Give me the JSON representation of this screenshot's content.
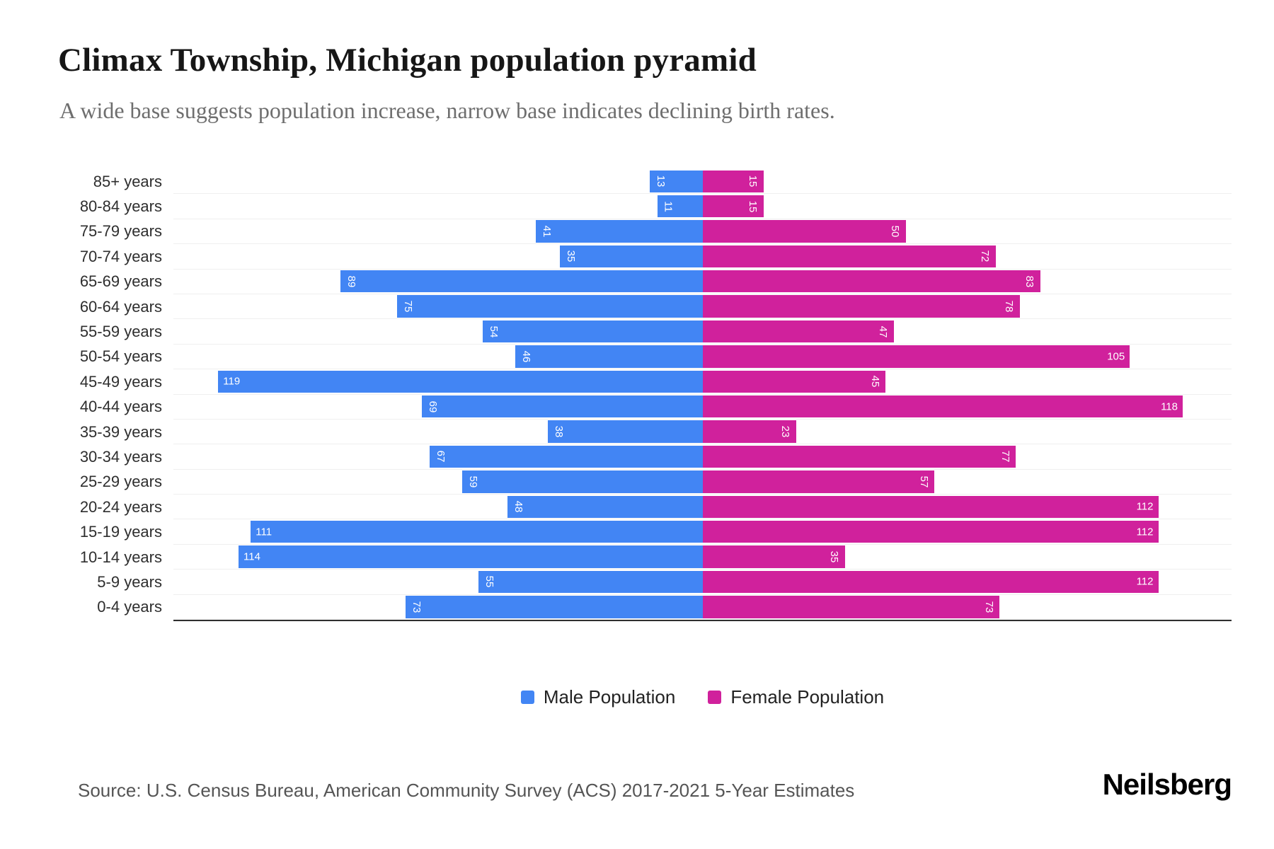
{
  "header": {
    "title": "Climax Township, Michigan population pyramid",
    "subtitle": "A wide base suggests population increase, narrow base indicates declining birth rates."
  },
  "chart_data": {
    "type": "bar",
    "variant": "population-pyramid",
    "orientation": "horizontal",
    "categories": [
      "85+ years",
      "80-84 years",
      "75-79 years",
      "70-74 years",
      "65-69 years",
      "60-64 years",
      "55-59 years",
      "50-54 years",
      "45-49 years",
      "40-44 years",
      "35-39 years",
      "30-34 years",
      "25-29 years",
      "20-24 years",
      "15-19 years",
      "10-14 years",
      "5-9 years",
      "0-4 years"
    ],
    "series": [
      {
        "name": "Male Population",
        "color": "#4285F4",
        "side": "left",
        "values": [
          13,
          11,
          41,
          35,
          89,
          75,
          54,
          46,
          119,
          69,
          38,
          67,
          59,
          48,
          111,
          114,
          55,
          73
        ]
      },
      {
        "name": "Female Population",
        "color": "#D0219C",
        "side": "right",
        "values": [
          15,
          15,
          50,
          72,
          83,
          78,
          47,
          105,
          45,
          118,
          23,
          77,
          57,
          112,
          112,
          35,
          112,
          73
        ]
      }
    ],
    "axis_max": 130,
    "grid": true,
    "legend_position": "bottom",
    "value_labels": "inside-end, white; 2-digit values rotated 90deg, 3-digit horizontal"
  },
  "footer": {
    "source": "Source: U.S. Census Bureau, American Community Survey (ACS) 2017-2021 5-Year Estimates",
    "logo": "Neilsberg"
  },
  "colors": {
    "male": "#4285F4",
    "female": "#D0219C",
    "subtitle_gray": "#6e6e6e",
    "gridline": "#efefef",
    "axis": "#2f2f2f"
  }
}
